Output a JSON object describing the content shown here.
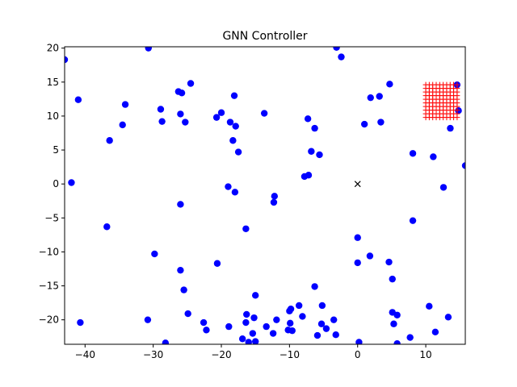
{
  "chart_data": {
    "type": "scatter",
    "title": "GNN Controller",
    "xlabel": "",
    "ylabel": "",
    "xlim": [
      -43,
      15.8
    ],
    "ylim": [
      -23.6,
      20.2
    ],
    "grid": false,
    "legend": "none",
    "x_ticks": [
      -40,
      -30,
      -20,
      -10,
      0,
      10
    ],
    "y_ticks": [
      -20,
      -15,
      -10,
      -5,
      0,
      5,
      10,
      15,
      20
    ],
    "colors": {
      "points": "#0000ff",
      "target_grid": "#ff0000",
      "origin_marker": "#000000"
    },
    "series": [
      {
        "marker": "circle",
        "color": "#0000ff",
        "points": [
          [
            -43,
            18.3
          ],
          [
            -41,
            12.4
          ],
          [
            -42,
            0.2
          ],
          [
            -40.7,
            -20.4
          ],
          [
            -36.4,
            6.4
          ],
          [
            -36.8,
            -6.3
          ],
          [
            -34.1,
            11.7
          ],
          [
            -34.5,
            8.7
          ],
          [
            -30.7,
            20
          ],
          [
            -29.8,
            -10.3
          ],
          [
            -30.8,
            -20
          ],
          [
            -28.9,
            11
          ],
          [
            -28.7,
            9.2
          ],
          [
            -28.2,
            -23.4
          ],
          [
            -26.3,
            13.6
          ],
          [
            -25.8,
            13.4
          ],
          [
            -26,
            10.3
          ],
          [
            -25.3,
            9.1
          ],
          [
            -26,
            -3
          ],
          [
            -26,
            -12.7
          ],
          [
            -25.5,
            -15.6
          ],
          [
            -24.9,
            -19.1
          ],
          [
            -24.5,
            14.8
          ],
          [
            -22.6,
            -20.4
          ],
          [
            -22.2,
            -21.5
          ],
          [
            -20.7,
            9.8
          ],
          [
            -20.6,
            -11.7
          ],
          [
            -20,
            10.5
          ],
          [
            -19,
            -0.4
          ],
          [
            -18.7,
            9.1
          ],
          [
            -18.9,
            -21
          ],
          [
            -18.3,
            6.4
          ],
          [
            -18.1,
            13
          ],
          [
            -17.9,
            8.5
          ],
          [
            -18,
            -1.2
          ],
          [
            -17.5,
            4.7
          ],
          [
            -16.9,
            -22.8
          ],
          [
            -16.4,
            -6.6
          ],
          [
            -16.3,
            -19.2
          ],
          [
            -16.4,
            -20.4
          ],
          [
            -16,
            -23.3
          ],
          [
            -15.4,
            -22
          ],
          [
            -15.2,
            -19.7
          ],
          [
            -15,
            -16.4
          ],
          [
            -15,
            -23.2
          ],
          [
            -13.7,
            10.4
          ],
          [
            -13.4,
            -21
          ],
          [
            -12.2,
            -1.8
          ],
          [
            -12.3,
            -2.7
          ],
          [
            -12.4,
            -22
          ],
          [
            -11.9,
            -20
          ],
          [
            -10.2,
            -21.5
          ],
          [
            -10,
            -18.7
          ],
          [
            -9.8,
            -18.4
          ],
          [
            -9.9,
            -20.5
          ],
          [
            -9.6,
            -21.6
          ],
          [
            -8.6,
            -17.9
          ],
          [
            -8.1,
            -19.5
          ],
          [
            -7.8,
            1.1
          ],
          [
            -7.3,
            9.6
          ],
          [
            -7.2,
            1.3
          ],
          [
            -6.8,
            4.8
          ],
          [
            -6.3,
            8.2
          ],
          [
            -6.3,
            -15.1
          ],
          [
            -5.9,
            -22.3
          ],
          [
            -5.6,
            4.3
          ],
          [
            -5.3,
            -20.6
          ],
          [
            -5.2,
            -17.9
          ],
          [
            -4.6,
            -21.3
          ],
          [
            -3.5,
            -20
          ],
          [
            -3.2,
            -22.2
          ],
          [
            -3.1,
            20.1
          ],
          [
            -2.4,
            18.7
          ],
          [
            0,
            -7.9
          ],
          [
            0,
            -11.6
          ],
          [
            0.2,
            -23.3
          ],
          [
            1,
            8.8
          ],
          [
            1.8,
            -10.6
          ],
          [
            1.9,
            12.7
          ],
          [
            3.2,
            12.9
          ],
          [
            3.4,
            9.1
          ],
          [
            4.7,
            14.7
          ],
          [
            4.6,
            -11.5
          ],
          [
            5.1,
            -14
          ],
          [
            5.1,
            -18.9
          ],
          [
            5.3,
            -20.6
          ],
          [
            5.8,
            -19.3
          ],
          [
            5.8,
            -23.5
          ],
          [
            7.7,
            -22.6
          ],
          [
            8.1,
            4.5
          ],
          [
            8.1,
            -5.4
          ],
          [
            10.5,
            -18
          ],
          [
            11.1,
            4
          ],
          [
            11.4,
            -21.8
          ],
          [
            12.6,
            -0.5
          ],
          [
            13.3,
            -19.6
          ],
          [
            13.6,
            8.2
          ],
          [
            14.6,
            14.6
          ],
          [
            14.8,
            10.8
          ],
          [
            15.8,
            2.7
          ]
        ]
      },
      {
        "marker": "plus-grid",
        "color": "#ff0000",
        "x_range": [
          10,
          14.6
        ],
        "y_range": [
          9.8,
          14.6
        ],
        "count_per_axis": 10
      },
      {
        "marker": "x",
        "color": "#000000",
        "points": [
          [
            0,
            0
          ]
        ]
      }
    ]
  }
}
